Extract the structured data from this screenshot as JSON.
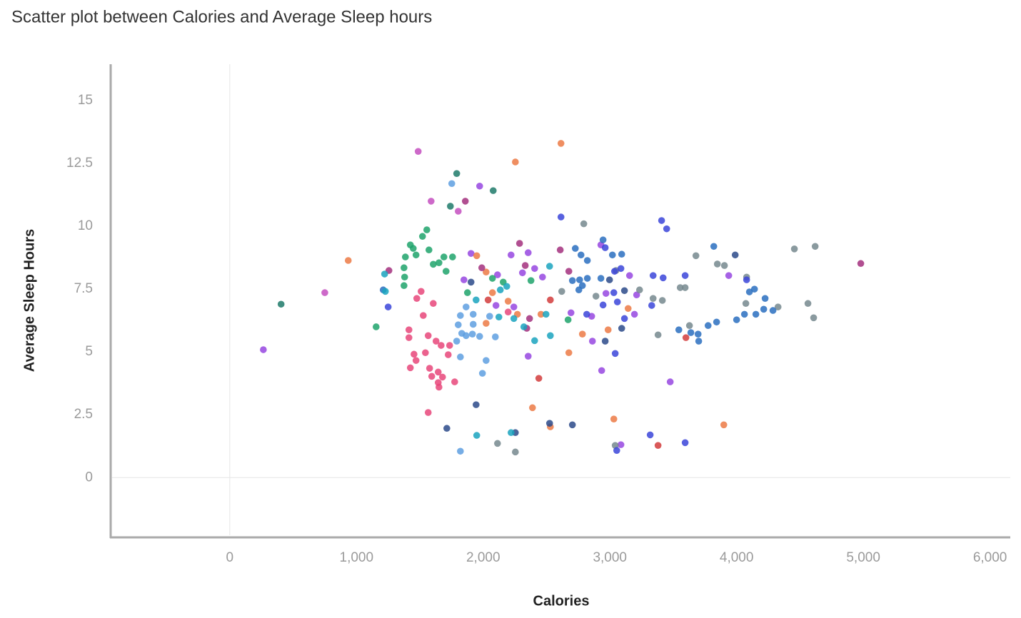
{
  "chart_data": {
    "type": "scatter",
    "title": "Scatter plot between Calories and Average Sleep hours",
    "x_label": "Calories",
    "y_label": "Average Sleep Hours",
    "xlim": [
      -940,
      6160
    ],
    "ylim": [
      -2.35,
      16.45
    ],
    "xticks": [
      0,
      {
        "value": 1000,
        "label": "1,000"
      },
      {
        "value": 2000,
        "label": "2,000"
      },
      {
        "value": 3000,
        "label": "3,000"
      },
      {
        "value": 4000,
        "label": "4,000"
      },
      {
        "value": 5000,
        "label": "5,000"
      },
      {
        "value": 6000,
        "label": "6,000"
      }
    ],
    "yticks": [
      0,
      2.5,
      5,
      7.5,
      10,
      12.5,
      15
    ],
    "grid": false,
    "zero_lines": true,
    "series": [
      {
        "color": "#9747e0",
        "x": [
          265,
          1972,
          3938,
          3087,
          3476,
          2355,
          2935,
          1904,
          2113,
          2101,
          2242,
          2220,
          2355,
          2406,
          2310,
          2468,
          1848,
          2929,
          3155,
          2969,
          3211,
          3194,
          2862,
          2856,
          2693
        ],
        "values": [
          5.09,
          11.6,
          8.04,
          1.31,
          3.81,
          4.83,
          4.26,
          8.92,
          8.07,
          6.85,
          6.79,
          8.86,
          8.95,
          8.32,
          8.15,
          7.98,
          7.87,
          9.26,
          8.04,
          7.33,
          7.27,
          6.5,
          5.43,
          6.42,
          6.56
        ]
      },
      {
        "color": "#1f7a6a",
        "x": [
          405,
          1791,
          2079,
          1741
        ],
        "values": [
          6.9,
          12.1,
          11.42,
          10.8
        ]
      },
      {
        "color": "#c44fbf",
        "x": [
          750,
          1487,
          1589,
          1803
        ],
        "values": [
          7.36,
          12.98,
          11.0,
          10.6
        ]
      },
      {
        "color": "#ec7a45",
        "x": [
          935,
          2614,
          2254,
          2389,
          2530,
          3031,
          3899,
          2676,
          1949,
          2023,
          2073,
          2197,
          2456,
          2270,
          2023,
          2986,
          2783,
          3144
        ],
        "values": [
          8.64,
          13.3,
          12.56,
          2.78,
          2.02,
          2.33,
          2.1,
          4.97,
          8.83,
          8.18,
          7.36,
          7.02,
          6.5,
          6.5,
          6.14,
          5.88,
          5.71,
          6.73
        ]
      },
      {
        "color": "#1fa36b",
        "x": [
          1155,
          1375,
          1380,
          1375,
          1386,
          1425,
          1448,
          1470,
          1521,
          1555,
          1572,
          1606,
          1651,
          1707,
          1758,
          1690,
          2073,
          2158,
          2377,
          1876,
          2670
        ],
        "values": [
          6.0,
          8.35,
          7.98,
          7.64,
          8.78,
          9.26,
          9.12,
          8.86,
          9.6,
          9.86,
          9.06,
          8.49,
          8.55,
          8.21,
          8.78,
          8.78,
          7.93,
          7.78,
          7.84,
          7.36,
          6.28
        ]
      },
      {
        "color": "#a3307e",
        "x": [
          4980,
          1859,
          1256,
          1989,
          2287,
          2332,
          2608,
          2676,
          2344,
          2366
        ],
        "values": [
          8.52,
          11.0,
          8.24,
          8.35,
          9.32,
          8.44,
          9.06,
          8.21,
          5.94,
          6.33
        ]
      },
      {
        "color": "#76888e",
        "x": [
          4608,
          4620,
          4456,
          4563,
          2794,
          3679,
          3848,
          3904,
          4079,
          4327,
          4073,
          3628,
          2113,
          2254,
          3042,
          3380,
          2620,
          2890,
          3234,
          3594,
          3555,
          3414,
          3341,
          3048
        ],
        "values": [
          6.36,
          9.2,
          9.1,
          6.93,
          10.1,
          8.83,
          8.5,
          8.44,
          7.98,
          6.79,
          6.93,
          6.05,
          1.36,
          1.02,
          1.28,
          5.68,
          7.41,
          7.22,
          7.47,
          7.56,
          7.56,
          7.05,
          7.13,
          8.24
        ]
      },
      {
        "color": "#3b45d9",
        "x": [
          2614,
          3408,
          3448,
          4079,
          3054,
          3318,
          3594,
          3042,
          1250,
          2963,
          3037,
          3087,
          3031,
          3341,
          3420,
          3594,
          3330,
          3115,
          2946,
          2817,
          3059
        ],
        "values": [
          10.37,
          10.23,
          9.9,
          7.87,
          1.08,
          1.7,
          1.39,
          4.94,
          6.79,
          9.15,
          8.21,
          8.32,
          7.36,
          8.04,
          7.95,
          8.04,
          6.85,
          6.33,
          6.87,
          6.5,
          6.99
        ]
      },
      {
        "color": "#2a6fc0",
        "x": [
          2946,
          3820,
          4141,
          4101,
          4225,
          4287,
          4214,
          4152,
          4062,
          4000,
          3842,
          3775,
          3696,
          3701,
          3639,
          3544,
          1211,
          2727,
          2772,
          2822,
          3020,
          3093,
          2929,
          2822,
          2761,
          2704,
          2755,
          2783
        ],
        "values": [
          9.46,
          9.2,
          7.5,
          7.39,
          7.13,
          6.65,
          6.7,
          6.5,
          6.5,
          6.28,
          6.19,
          6.05,
          5.71,
          5.43,
          5.77,
          5.88,
          7.47,
          9.12,
          8.86,
          8.64,
          8.86,
          8.89,
          7.93,
          7.93,
          7.87,
          7.84,
          7.47,
          7.64
        ]
      },
      {
        "color": "#2b4a8a",
        "x": [
          3989,
          1713,
          1944,
          2254,
          2524,
          2704,
          1904,
          2997,
          3115,
          3093,
          2963
        ],
        "values": [
          8.86,
          1.96,
          2.9,
          1.79,
          2.16,
          2.1,
          7.78,
          7.87,
          7.44,
          5.94,
          5.43
        ]
      },
      {
        "color": "#e8477a",
        "x": [
          1566,
          1414,
          1414,
          1454,
          1470,
          1425,
          1577,
          1594,
          1645,
          1651,
          1679,
          1724,
          1735,
          1668,
          1628,
          1566,
          1527,
          1476,
          1510,
          1606,
          1775,
          1645,
          1544,
          2197
        ],
        "values": [
          2.59,
          5.88,
          5.57,
          4.91,
          4.66,
          4.37,
          4.35,
          4.03,
          3.78,
          3.6,
          4.0,
          4.89,
          5.26,
          5.26,
          5.43,
          5.65,
          6.45,
          7.13,
          7.41,
          6.93,
          3.81,
          4.2,
          4.97,
          6.59
        ]
      },
      {
        "color": "#5e9fe0",
        "x": [
          1752,
          1820,
          1803,
          1831,
          1865,
          1915,
          1791,
          1820,
          2023,
          1994,
          1972,
          2096,
          1921,
          1865,
          1820,
          1921,
          2051
        ],
        "values": [
          11.7,
          1.05,
          6.08,
          5.74,
          5.65,
          5.71,
          5.43,
          4.8,
          4.66,
          4.15,
          5.62,
          5.6,
          6.1,
          6.79,
          6.45,
          6.5,
          6.42
        ]
      },
      {
        "color": "#1aa3be",
        "x": [
          1949,
          2220,
          1228,
          1222,
          2186,
          2135,
          2524,
          2496,
          2530,
          2406,
          2321,
          2242,
          2124,
          1944
        ],
        "values": [
          1.68,
          1.79,
          7.41,
          8.1,
          7.61,
          7.47,
          8.41,
          6.5,
          5.65,
          5.45,
          6.0,
          6.33,
          6.39,
          7.07
        ]
      },
      {
        "color": "#d23c3c",
        "x": [
          3380,
          2439,
          3600,
          2039,
          2530
        ],
        "values": [
          1.28,
          3.95,
          5.57,
          7.07,
          7.07
        ]
      }
    ]
  }
}
